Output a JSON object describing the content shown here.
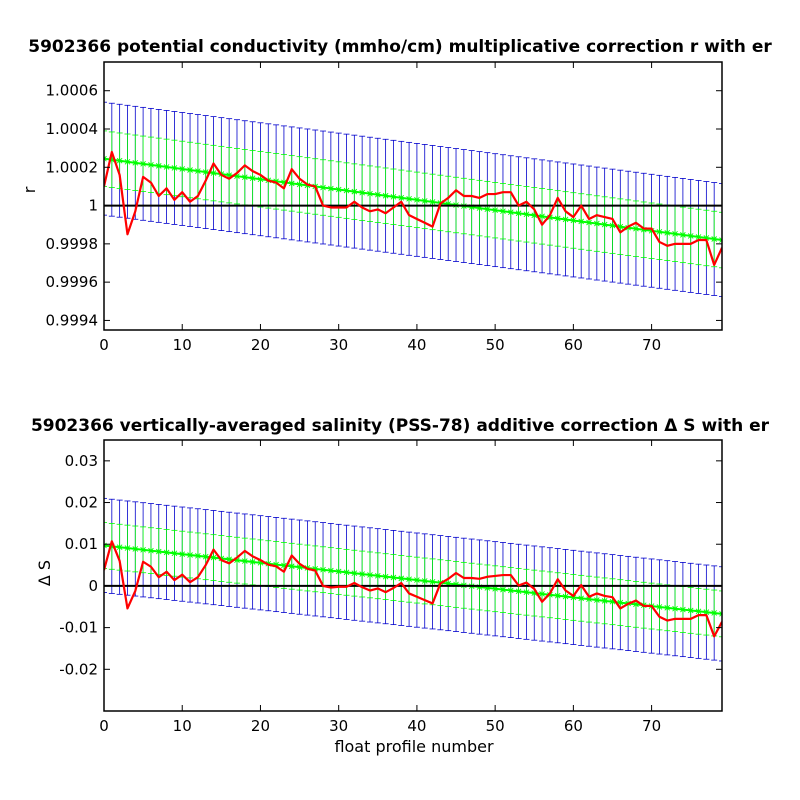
{
  "chart_data": [
    {
      "type": "line",
      "title": "5902366 potential conductivity (mmho/cm) multiplicative correction r with er",
      "xlabel": "",
      "ylabel": "r",
      "xlim": [
        0,
        79
      ],
      "ylim": [
        0.99935,
        1.00075
      ],
      "xticks": [
        "0",
        "10",
        "20",
        "30",
        "40",
        "50",
        "60",
        "70"
      ],
      "yticks": [
        "0.9994",
        "0.9996",
        "0.9998",
        "1",
        "1.0002",
        "1.0004",
        "1.0006"
      ],
      "grid": false,
      "reference_line": 1,
      "fit": {
        "start": 1.000245,
        "end": 0.99982,
        "err_inner": 0.000145,
        "err_outer": 0.000295
      },
      "colors": {
        "measured": "#ff0000",
        "fit": "#00ff00",
        "error": "#0000cc",
        "reference": "#000000"
      },
      "series": [
        {
          "values": [
            1.0001,
            1.00028,
            1.00016,
            0.99985,
            0.99997,
            1.00015,
            1.00012,
            1.00005,
            1.00009,
            1.00003,
            1.00007,
            1.00002,
            1.00005,
            1.00013,
            1.00022,
            1.00016,
            1.00014,
            1.00017,
            1.00021,
            1.00018,
            1.00016,
            1.00013,
            1.00012,
            1.00009,
            1.00019,
            1.00014,
            1.00011,
            1.0001,
            1.0,
            0.99999,
            0.99999,
            0.99999,
            1.00002,
            0.99999,
            0.99997,
            0.99998,
            0.99996,
            0.99999,
            1.00002,
            0.99995,
            0.99993,
            0.99991,
            0.99989,
            1.00001,
            1.00004,
            1.00008,
            1.00005,
            1.00005,
            1.00004,
            1.00006,
            1.00006,
            1.00007,
            1.00007,
            1.0,
            1.00002,
            0.99998,
            0.9999,
            0.99995,
            1.00004,
            0.99997,
            0.99994,
            1.0,
            0.99993,
            0.99995,
            0.99994,
            0.99993,
            0.99986,
            0.99989,
            0.99991,
            0.99988,
            0.99988,
            0.99981,
            0.99979,
            0.9998,
            0.9998,
            0.9998,
            0.99982,
            0.99982,
            0.99969,
            0.99978
          ]
        }
      ]
    },
    {
      "type": "line",
      "title": "5902366 vertically-averaged salinity (PSS-78) additive correction Δ S with er",
      "xlabel": "float profile number",
      "ylabel": "Δ S",
      "xlim": [
        0,
        79
      ],
      "ylim": [
        -0.03,
        0.035
      ],
      "xticks": [
        "0",
        "10",
        "20",
        "30",
        "40",
        "50",
        "60",
        "70"
      ],
      "yticks": [
        "-0.02",
        "-0.01",
        "0",
        "0.01",
        "0.02",
        "0.03"
      ],
      "grid": false,
      "reference_line": 0,
      "fit": {
        "start": 0.0097,
        "end": -0.0067,
        "err_inner": 0.0055,
        "err_outer": 0.0113
      },
      "colors": {
        "measured": "#ff0000",
        "fit": "#00ff00",
        "error": "#0000cc",
        "reference": "#000000"
      },
      "series": [
        {
          "values": [
            0.0038,
            0.0107,
            0.006,
            -0.0054,
            -0.0012,
            0.0058,
            0.0046,
            0.0021,
            0.0034,
            0.0014,
            0.0027,
            0.0009,
            0.0021,
            0.005,
            0.0087,
            0.0062,
            0.0054,
            0.0068,
            0.0084,
            0.0071,
            0.0062,
            0.0051,
            0.0047,
            0.0034,
            0.0073,
            0.0053,
            0.0041,
            0.0037,
            0.0,
            -0.0004,
            -0.0002,
            -0.0002,
            0.0007,
            -0.0003,
            -0.0011,
            -0.0006,
            -0.0015,
            -0.0005,
            0.0007,
            -0.0018,
            -0.0026,
            -0.0034,
            -0.0042,
            0.0006,
            0.0017,
            0.0031,
            0.0019,
            0.0019,
            0.0017,
            0.0022,
            0.0024,
            0.0026,
            0.0026,
            0.0001,
            0.0008,
            -0.0007,
            -0.0038,
            -0.0018,
            0.0016,
            -0.0011,
            -0.0024,
            0.0002,
            -0.0026,
            -0.0018,
            -0.0024,
            -0.0027,
            -0.0054,
            -0.0043,
            -0.0035,
            -0.0048,
            -0.0048,
            -0.0074,
            -0.0083,
            -0.0079,
            -0.0079,
            -0.0079,
            -0.007,
            -0.007,
            -0.0121,
            -0.0086
          ]
        }
      ]
    }
  ]
}
